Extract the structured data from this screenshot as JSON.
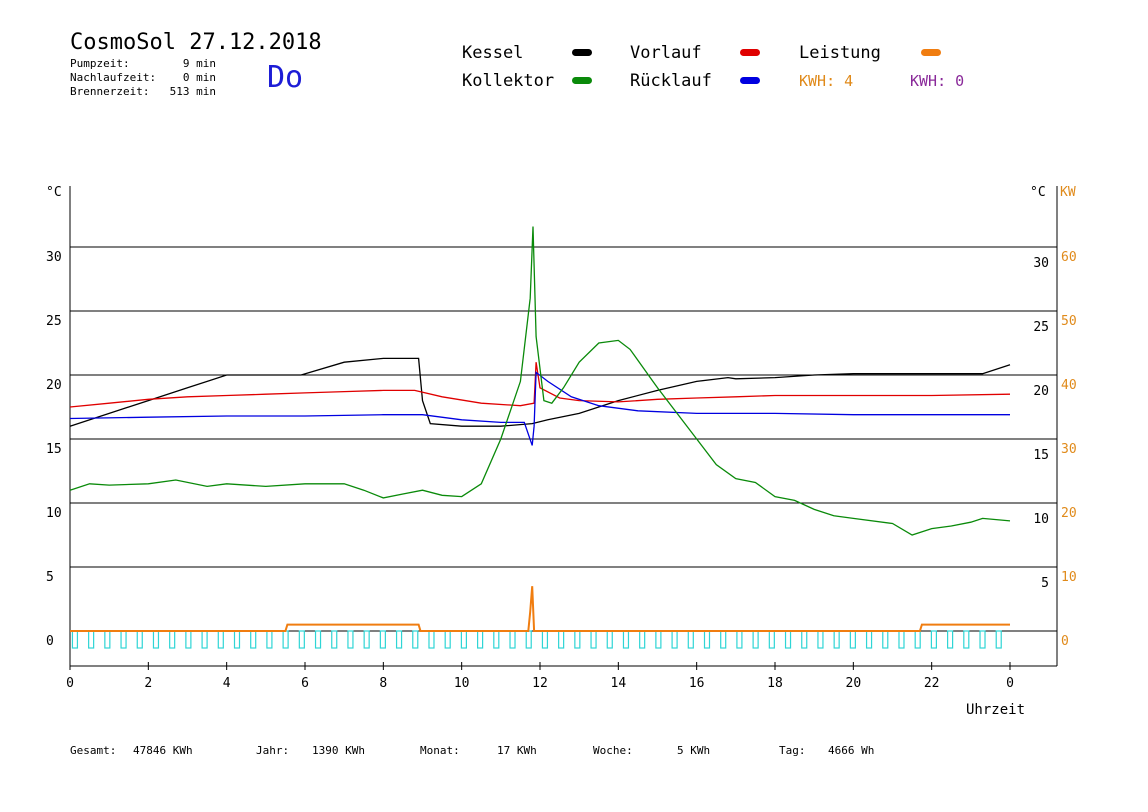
{
  "header": {
    "title": "CosmoSol 27.12.2018",
    "day_of_week": "Do",
    "stats": [
      {
        "label": "Pumpzeit:",
        "value": "9 min"
      },
      {
        "label": "Nachlaufzeit:",
        "value": "0 min"
      },
      {
        "label": "Brennerzeit:",
        "value": "513 min"
      }
    ]
  },
  "legend": {
    "items": [
      {
        "label": "Kessel",
        "color": "#000000"
      },
      {
        "label": "Vorlauf",
        "color": "#e00000"
      },
      {
        "label": "Leistung",
        "color": "#f07d10"
      },
      {
        "label": "Kollektor",
        "color": "#0a8a0a"
      },
      {
        "label": "Rücklauf",
        "color": "#0000e0"
      }
    ],
    "kwh_1": {
      "text": "KWH: 4",
      "color": "#e08a1a"
    },
    "kwh_2": {
      "text": "KWH: 0",
      "color": "#8a2a9a"
    }
  },
  "axes": {
    "left_unit": "°C",
    "right_unit_temp": "°C",
    "right_unit_power": "KW",
    "x_label": "Uhrzeit"
  },
  "footer": {
    "gesamt_label": "Gesamt:",
    "gesamt_value": "47846 KWh",
    "jahr_label": "Jahr:",
    "jahr_value": "1390 KWh",
    "monat_label": "Monat:",
    "monat_value": "17 KWh",
    "woche_label": "Woche:",
    "woche_value": "5 KWh",
    "tag_label": "Tag:",
    "tag_value": "4666 Wh"
  },
  "chart_data": {
    "type": "line",
    "x_unit": "hour of day",
    "xlim": [
      0,
      24
    ],
    "ylim": [
      -2,
      35
    ],
    "y2lim": [
      -4,
      70
    ],
    "x_ticks": [
      "0",
      "2",
      "4",
      "6",
      "8",
      "10",
      "12",
      "14",
      "16",
      "18",
      "20",
      "22",
      "0"
    ],
    "left_ticks": [
      0,
      5,
      10,
      15,
      20,
      25,
      30
    ],
    "right_temp_ticks": [
      5,
      10,
      15,
      20,
      25,
      30
    ],
    "right_kw_ticks": [
      0,
      10,
      20,
      30,
      40,
      50,
      60
    ],
    "grid_y": [
      0,
      5,
      10,
      15,
      20,
      25,
      30
    ],
    "series": [
      {
        "name": "Kessel",
        "color": "#000000",
        "points": [
          [
            0,
            16
          ],
          [
            1,
            17
          ],
          [
            2,
            18
          ],
          [
            3,
            19
          ],
          [
            4,
            20
          ],
          [
            5.9,
            20
          ],
          [
            7,
            21
          ],
          [
            8,
            21.3
          ],
          [
            8.9,
            21.3
          ],
          [
            9,
            18
          ],
          [
            9.2,
            16.2
          ],
          [
            10,
            16
          ],
          [
            11,
            16
          ],
          [
            11.8,
            16.2
          ],
          [
            12.2,
            16.5
          ],
          [
            13,
            17
          ],
          [
            14,
            18
          ],
          [
            15,
            18.8
          ],
          [
            16,
            19.5
          ],
          [
            16.8,
            19.8
          ],
          [
            17,
            19.7
          ],
          [
            18,
            19.8
          ],
          [
            19,
            20
          ],
          [
            20,
            20.1
          ],
          [
            23.3,
            20.1
          ],
          [
            24,
            20.8
          ]
        ]
      },
      {
        "name": "Vorlauf",
        "color": "#e00000",
        "points": [
          [
            0,
            17.5
          ],
          [
            1,
            17.8
          ],
          [
            2,
            18.1
          ],
          [
            3,
            18.3
          ],
          [
            4,
            18.4
          ],
          [
            5,
            18.5
          ],
          [
            6,
            18.6
          ],
          [
            7,
            18.7
          ],
          [
            8,
            18.8
          ],
          [
            8.8,
            18.8
          ],
          [
            9.5,
            18.3
          ],
          [
            10.5,
            17.8
          ],
          [
            11.5,
            17.6
          ],
          [
            11.85,
            17.8
          ],
          [
            11.9,
            21
          ],
          [
            12,
            19
          ],
          [
            12.5,
            18.2
          ],
          [
            13,
            18
          ],
          [
            14,
            17.9
          ],
          [
            15,
            18.1
          ],
          [
            16,
            18.2
          ],
          [
            17,
            18.3
          ],
          [
            18,
            18.4
          ],
          [
            20,
            18.4
          ],
          [
            22,
            18.4
          ],
          [
            24,
            18.5
          ]
        ]
      },
      {
        "name": "Rücklauf",
        "color": "#0000e0",
        "points": [
          [
            0,
            16.6
          ],
          [
            2,
            16.7
          ],
          [
            4,
            16.8
          ],
          [
            6,
            16.8
          ],
          [
            8,
            16.9
          ],
          [
            9,
            16.9
          ],
          [
            10,
            16.5
          ],
          [
            11,
            16.3
          ],
          [
            11.6,
            16.3
          ],
          [
            11.8,
            14.5
          ],
          [
            11.85,
            16
          ],
          [
            11.9,
            20.2
          ],
          [
            12.2,
            19.5
          ],
          [
            12.8,
            18.3
          ],
          [
            13.5,
            17.6
          ],
          [
            14.5,
            17.2
          ],
          [
            16,
            17
          ],
          [
            18,
            17
          ],
          [
            20,
            16.9
          ],
          [
            22,
            16.9
          ],
          [
            24,
            16.9
          ]
        ]
      },
      {
        "name": "Kollektor",
        "color": "#0a8a0a",
        "points": [
          [
            0,
            11
          ],
          [
            0.5,
            11.5
          ],
          [
            1,
            11.4
          ],
          [
            2,
            11.5
          ],
          [
            2.7,
            11.8
          ],
          [
            3.5,
            11.3
          ],
          [
            4,
            11.5
          ],
          [
            5,
            11.3
          ],
          [
            6,
            11.5
          ],
          [
            7,
            11.5
          ],
          [
            7.5,
            11
          ],
          [
            8,
            10.4
          ],
          [
            8.5,
            10.7
          ],
          [
            9,
            11
          ],
          [
            9.5,
            10.6
          ],
          [
            10,
            10.5
          ],
          [
            10.5,
            11.5
          ],
          [
            11,
            15
          ],
          [
            11.5,
            19.5
          ],
          [
            11.75,
            26
          ],
          [
            11.82,
            31.6
          ],
          [
            11.9,
            23
          ],
          [
            12.1,
            18
          ],
          [
            12.3,
            17.8
          ],
          [
            12.6,
            19
          ],
          [
            13,
            21
          ],
          [
            13.5,
            22.5
          ],
          [
            14,
            22.7
          ],
          [
            14.3,
            22
          ],
          [
            15,
            19
          ],
          [
            15.5,
            17
          ],
          [
            16,
            15
          ],
          [
            16.5,
            13
          ],
          [
            17,
            11.9
          ],
          [
            17.5,
            11.6
          ],
          [
            18,
            10.5
          ],
          [
            18.5,
            10.2
          ],
          [
            19,
            9.5
          ],
          [
            19.5,
            9
          ],
          [
            20,
            8.8
          ],
          [
            21,
            8.4
          ],
          [
            21.5,
            7.5
          ],
          [
            22,
            8
          ],
          [
            22.5,
            8.2
          ],
          [
            23,
            8.5
          ],
          [
            23.3,
            8.8
          ],
          [
            24,
            8.6
          ]
        ]
      },
      {
        "name": "Leistung",
        "color": "#f07d10",
        "axis": "kw",
        "points": [
          [
            0,
            0
          ],
          [
            5.5,
            0
          ],
          [
            5.55,
            1
          ],
          [
            8.9,
            1
          ],
          [
            8.95,
            0
          ],
          [
            11.7,
            0
          ],
          [
            11.75,
            3
          ],
          [
            11.8,
            7
          ],
          [
            11.85,
            0
          ],
          [
            21.7,
            0
          ],
          [
            21.75,
            1
          ],
          [
            24,
            1
          ]
        ]
      }
    ],
    "pump_pulses": {
      "color": "#2fd5d5",
      "count": 58
    }
  }
}
